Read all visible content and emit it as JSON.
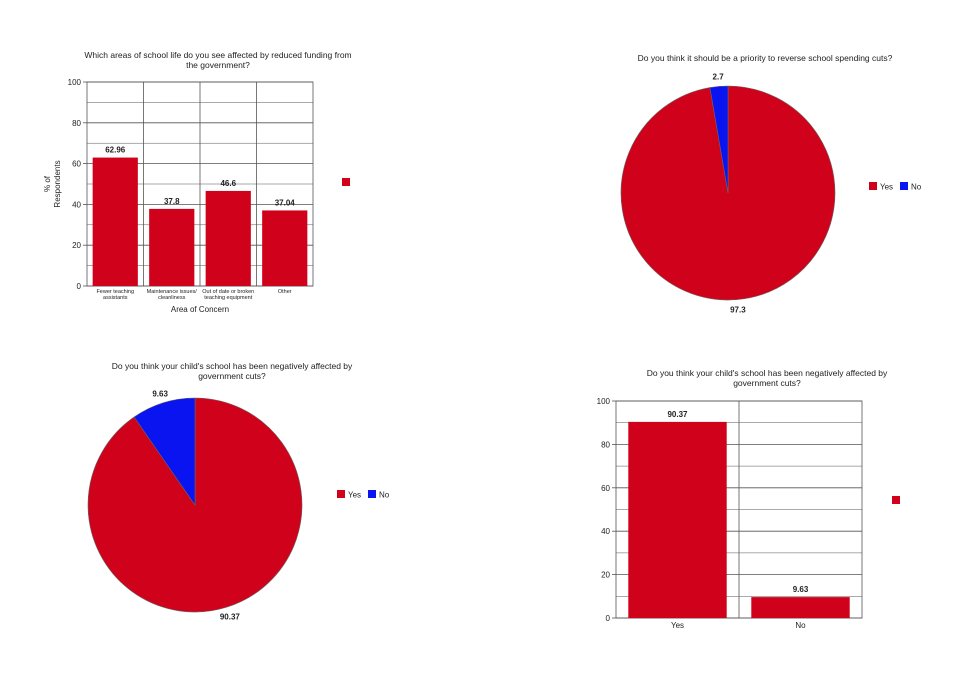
{
  "colors": {
    "yes": "#d0021b",
    "no": "#0a14f0",
    "grid": "#555555"
  },
  "chart_data": [
    {
      "type": "bar",
      "title": [
        "Which areas of school life do you see affected by reduced funding from",
        "the government?"
      ],
      "categories": [
        [
          "Fewer teaching",
          "assistants"
        ],
        [
          "Maintenance issues/",
          "cleanliness"
        ],
        [
          "Out of date or broken",
          "teaching equipment"
        ],
        [
          "Other"
        ]
      ],
      "values": [
        62.96,
        37.8,
        46.6,
        37.04
      ],
      "value_labels": [
        "62.96",
        "37.8",
        "46.6",
        "37.04"
      ],
      "xlabel": "Area of Concern",
      "ylabel": [
        "% of",
        "Respondents"
      ],
      "ylim": [
        0,
        100
      ],
      "yticks": [
        "0",
        "20",
        "40",
        "60",
        "80",
        "100"
      ],
      "grid": true,
      "legend": "right"
    },
    {
      "type": "pie",
      "title": [
        "Do you think it should be a priority to reverse school spending cuts?"
      ],
      "slices": [
        {
          "label": "Yes",
          "value": 97.3,
          "value_label": "97.3"
        },
        {
          "label": "No",
          "value": 2.7,
          "value_label": "2.7"
        }
      ],
      "legend": "right"
    },
    {
      "type": "pie",
      "title": [
        "Do you think your child's school has been negatively affected by",
        "government cuts?"
      ],
      "slices": [
        {
          "label": "Yes",
          "value": 90.37,
          "value_label": "90.37"
        },
        {
          "label": "No",
          "value": 9.63,
          "value_label": "9.63"
        }
      ],
      "legend": "right"
    },
    {
      "type": "bar",
      "title": [
        "Do you think your child's school has been negatively affected by",
        "government cuts?"
      ],
      "categories": [
        [
          "Yes"
        ],
        [
          "No"
        ]
      ],
      "values": [
        90.37,
        9.63
      ],
      "value_labels": [
        "90.37",
        "9.63"
      ],
      "xlabel": "",
      "ylabel": "",
      "ylim": [
        0,
        100
      ],
      "yticks": [
        "0",
        "20",
        "40",
        "60",
        "80",
        "100"
      ],
      "grid": true,
      "legend": "right"
    }
  ]
}
